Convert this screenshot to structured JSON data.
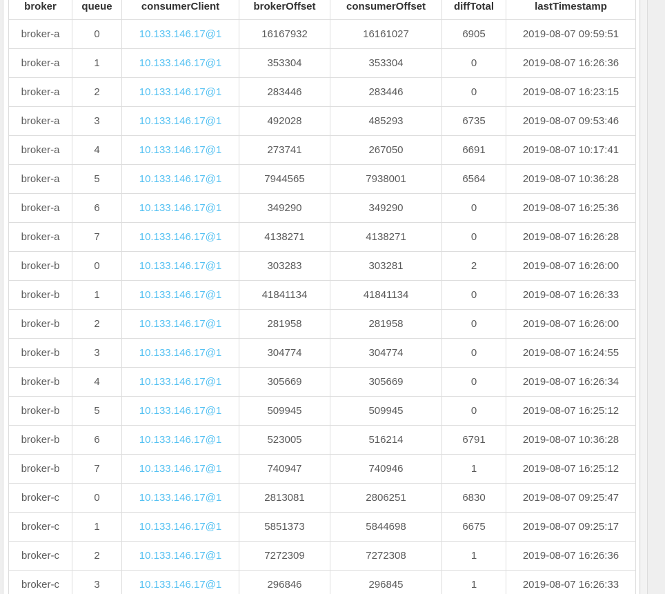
{
  "page": {
    "backdrop_color": "#efefef",
    "panel_color": "#ffffff",
    "table_border_color": "#dddddd",
    "header_text_color": "#333333",
    "body_text_color": "#5b5b5b",
    "link_color": "#54c1f2"
  },
  "table": {
    "columns": [
      {
        "key": "broker",
        "label": "broker"
      },
      {
        "key": "queue",
        "label": "queue"
      },
      {
        "key": "consumerClient",
        "label": "consumerClient"
      },
      {
        "key": "brokerOffset",
        "label": "brokerOffset"
      },
      {
        "key": "consumerOffset",
        "label": "consumerOffset"
      },
      {
        "key": "diffTotal",
        "label": "diffTotal"
      },
      {
        "key": "lastTimestamp",
        "label": "lastTimestamp"
      }
    ],
    "rows": [
      {
        "broker": "broker-a",
        "queue": "0",
        "consumerClient": "10.133.146.17@1",
        "brokerOffset": "16167932",
        "consumerOffset": "16161027",
        "diffTotal": "6905",
        "lastTimestamp": "2019-08-07 09:59:51"
      },
      {
        "broker": "broker-a",
        "queue": "1",
        "consumerClient": "10.133.146.17@1",
        "brokerOffset": "353304",
        "consumerOffset": "353304",
        "diffTotal": "0",
        "lastTimestamp": "2019-08-07 16:26:36"
      },
      {
        "broker": "broker-a",
        "queue": "2",
        "consumerClient": "10.133.146.17@1",
        "brokerOffset": "283446",
        "consumerOffset": "283446",
        "diffTotal": "0",
        "lastTimestamp": "2019-08-07 16:23:15"
      },
      {
        "broker": "broker-a",
        "queue": "3",
        "consumerClient": "10.133.146.17@1",
        "brokerOffset": "492028",
        "consumerOffset": "485293",
        "diffTotal": "6735",
        "lastTimestamp": "2019-08-07 09:53:46"
      },
      {
        "broker": "broker-a",
        "queue": "4",
        "consumerClient": "10.133.146.17@1",
        "brokerOffset": "273741",
        "consumerOffset": "267050",
        "diffTotal": "6691",
        "lastTimestamp": "2019-08-07 10:17:41"
      },
      {
        "broker": "broker-a",
        "queue": "5",
        "consumerClient": "10.133.146.17@1",
        "brokerOffset": "7944565",
        "consumerOffset": "7938001",
        "diffTotal": "6564",
        "lastTimestamp": "2019-08-07 10:36:28"
      },
      {
        "broker": "broker-a",
        "queue": "6",
        "consumerClient": "10.133.146.17@1",
        "brokerOffset": "349290",
        "consumerOffset": "349290",
        "diffTotal": "0",
        "lastTimestamp": "2019-08-07 16:25:36"
      },
      {
        "broker": "broker-a",
        "queue": "7",
        "consumerClient": "10.133.146.17@1",
        "brokerOffset": "4138271",
        "consumerOffset": "4138271",
        "diffTotal": "0",
        "lastTimestamp": "2019-08-07 16:26:28"
      },
      {
        "broker": "broker-b",
        "queue": "0",
        "consumerClient": "10.133.146.17@1",
        "brokerOffset": "303283",
        "consumerOffset": "303281",
        "diffTotal": "2",
        "lastTimestamp": "2019-08-07 16:26:00"
      },
      {
        "broker": "broker-b",
        "queue": "1",
        "consumerClient": "10.133.146.17@1",
        "brokerOffset": "41841134",
        "consumerOffset": "41841134",
        "diffTotal": "0",
        "lastTimestamp": "2019-08-07 16:26:33"
      },
      {
        "broker": "broker-b",
        "queue": "2",
        "consumerClient": "10.133.146.17@1",
        "brokerOffset": "281958",
        "consumerOffset": "281958",
        "diffTotal": "0",
        "lastTimestamp": "2019-08-07 16:26:00"
      },
      {
        "broker": "broker-b",
        "queue": "3",
        "consumerClient": "10.133.146.17@1",
        "brokerOffset": "304774",
        "consumerOffset": "304774",
        "diffTotal": "0",
        "lastTimestamp": "2019-08-07 16:24:55"
      },
      {
        "broker": "broker-b",
        "queue": "4",
        "consumerClient": "10.133.146.17@1",
        "brokerOffset": "305669",
        "consumerOffset": "305669",
        "diffTotal": "0",
        "lastTimestamp": "2019-08-07 16:26:34"
      },
      {
        "broker": "broker-b",
        "queue": "5",
        "consumerClient": "10.133.146.17@1",
        "brokerOffset": "509945",
        "consumerOffset": "509945",
        "diffTotal": "0",
        "lastTimestamp": "2019-08-07 16:25:12"
      },
      {
        "broker": "broker-b",
        "queue": "6",
        "consumerClient": "10.133.146.17@1",
        "brokerOffset": "523005",
        "consumerOffset": "516214",
        "diffTotal": "6791",
        "lastTimestamp": "2019-08-07 10:36:28"
      },
      {
        "broker": "broker-b",
        "queue": "7",
        "consumerClient": "10.133.146.17@1",
        "brokerOffset": "740947",
        "consumerOffset": "740946",
        "diffTotal": "1",
        "lastTimestamp": "2019-08-07 16:25:12"
      },
      {
        "broker": "broker-c",
        "queue": "0",
        "consumerClient": "10.133.146.17@1",
        "brokerOffset": "2813081",
        "consumerOffset": "2806251",
        "diffTotal": "6830",
        "lastTimestamp": "2019-08-07 09:25:47"
      },
      {
        "broker": "broker-c",
        "queue": "1",
        "consumerClient": "10.133.146.17@1",
        "brokerOffset": "5851373",
        "consumerOffset": "5844698",
        "diffTotal": "6675",
        "lastTimestamp": "2019-08-07 09:25:17"
      },
      {
        "broker": "broker-c",
        "queue": "2",
        "consumerClient": "10.133.146.17@1",
        "brokerOffset": "7272309",
        "consumerOffset": "7272308",
        "diffTotal": "1",
        "lastTimestamp": "2019-08-07 16:26:36"
      },
      {
        "broker": "broker-c",
        "queue": "3",
        "consumerClient": "10.133.146.17@1",
        "brokerOffset": "296846",
        "consumerOffset": "296845",
        "diffTotal": "1",
        "lastTimestamp": "2019-08-07 16:26:33"
      }
    ]
  }
}
